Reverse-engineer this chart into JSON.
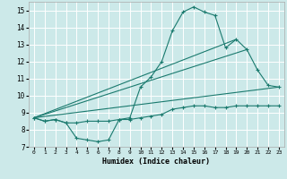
{
  "xlabel": "Humidex (Indice chaleur)",
  "background_color": "#cce9e9",
  "grid_color": "#ffffff",
  "line_color": "#1a7a6e",
  "xlim": [
    -0.5,
    23.5
  ],
  "ylim": [
    7,
    15.5
  ],
  "yticks": [
    7,
    8,
    9,
    10,
    11,
    12,
    13,
    14,
    15
  ],
  "xticks": [
    0,
    1,
    2,
    3,
    4,
    5,
    6,
    7,
    8,
    9,
    10,
    11,
    12,
    13,
    14,
    15,
    16,
    17,
    18,
    19,
    20,
    21,
    22,
    23
  ],
  "series1_x": [
    0,
    1,
    2,
    3,
    4,
    5,
    6,
    7,
    8,
    9,
    10,
    11,
    12,
    13,
    14,
    15,
    16,
    17,
    18,
    19,
    20,
    21,
    22,
    23
  ],
  "series1_y": [
    8.7,
    8.5,
    8.6,
    8.4,
    7.5,
    7.4,
    7.3,
    7.4,
    8.6,
    8.6,
    8.7,
    8.8,
    8.9,
    9.2,
    9.3,
    9.4,
    9.4,
    9.3,
    9.3,
    9.4,
    9.4,
    9.4,
    9.4,
    9.4
  ],
  "series2_x": [
    0,
    1,
    2,
    3,
    4,
    5,
    6,
    7,
    8,
    9,
    10,
    11,
    12,
    13,
    14,
    15,
    16,
    17,
    18,
    19,
    20,
    21,
    22,
    23
  ],
  "series2_y": [
    8.7,
    8.5,
    8.6,
    8.4,
    8.4,
    8.5,
    8.5,
    8.5,
    8.6,
    8.7,
    10.5,
    11.1,
    12.0,
    13.8,
    14.9,
    15.2,
    14.9,
    14.7,
    12.8,
    13.3,
    12.7,
    11.5,
    10.6,
    10.5
  ],
  "series3_x": [
    0,
    19
  ],
  "series3_y": [
    8.7,
    13.3
  ],
  "series4_x": [
    0,
    20
  ],
  "series4_y": [
    8.7,
    12.7
  ],
  "series5_x": [
    0,
    23
  ],
  "series5_y": [
    8.7,
    10.5
  ]
}
